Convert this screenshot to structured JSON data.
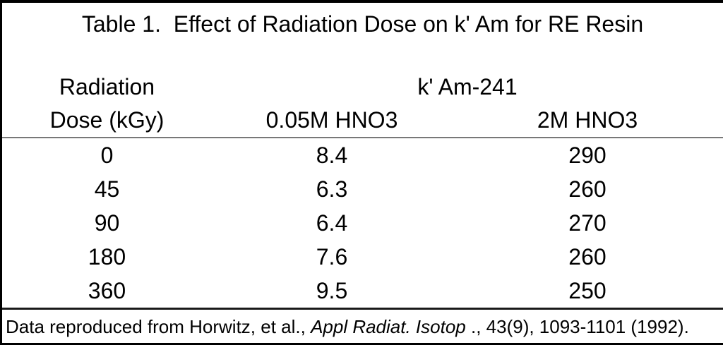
{
  "table": {
    "title": "Table 1.  Effect of Radiation Dose on k' Am for RE Resin",
    "header": {
      "col1_line1": "Radiation",
      "col1_line2": "Dose (kGy)",
      "span_label": "k' Am-241",
      "col2_label": "0.05M HNO3",
      "col3_label": "2M HNO3"
    },
    "rows": [
      {
        "dose": "0",
        "k_005m_hno3": "8.4",
        "k_2m_hno3": "290"
      },
      {
        "dose": "45",
        "k_005m_hno3": "6.3",
        "k_2m_hno3": "260"
      },
      {
        "dose": "90",
        "k_005m_hno3": "6.4",
        "k_2m_hno3": "270"
      },
      {
        "dose": "180",
        "k_005m_hno3": "7.6",
        "k_2m_hno3": "260"
      },
      {
        "dose": "360",
        "k_005m_hno3": "9.5",
        "k_2m_hno3": "250"
      }
    ],
    "footnote": {
      "prefix": "Data reproduced from Horwitz, et al., ",
      "italic": "Appl Radiat. Isotop",
      "suffix": " ., 43(9), 1093-1101 (1992)."
    }
  },
  "colors": {
    "text": "#000000",
    "background": "#ffffff",
    "outer_border": "#000000",
    "header_rule": "#787878",
    "footer_rule": "#1a1a1a"
  },
  "chart_data": {
    "type": "table",
    "title": "Table 1.  Effect of Radiation Dose on k' Am for RE Resin",
    "columns": [
      "Radiation Dose (kGy)",
      "k' Am-241 0.05M HNO3",
      "k' Am-241 2M HNO3"
    ],
    "x": [
      0,
      45,
      90,
      180,
      360
    ],
    "series": [
      {
        "name": "k' Am-241 0.05M HNO3",
        "values": [
          8.4,
          6.3,
          6.4,
          7.6,
          9.5
        ]
      },
      {
        "name": "k' Am-241 2M HNO3",
        "values": [
          290,
          260,
          270,
          260,
          250
        ]
      }
    ],
    "annotations": [
      "Data reproduced from Horwitz, et al., Appl Radiat. Isotop ., 43(9), 1093-1101 (1992)."
    ]
  }
}
